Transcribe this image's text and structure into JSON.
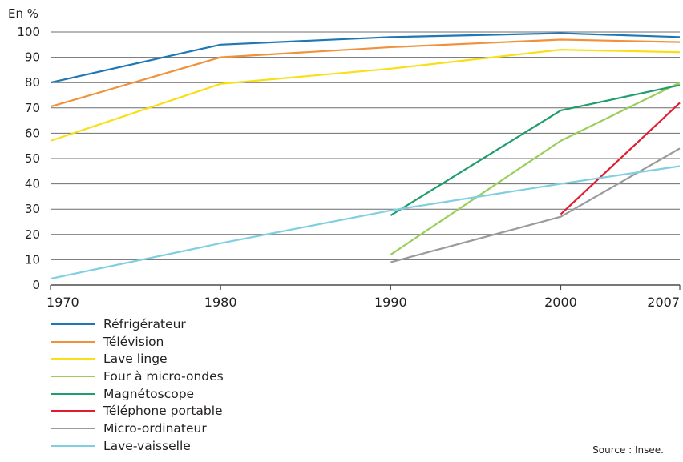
{
  "chart_data": {
    "type": "line",
    "unit_label": "En %",
    "x": [
      1970,
      1980,
      1990,
      2000,
      2007
    ],
    "xlim": [
      1970,
      2007
    ],
    "ylim": [
      0,
      100
    ],
    "yticks": [
      0,
      10,
      20,
      30,
      40,
      50,
      60,
      70,
      80,
      90,
      100
    ],
    "grid": "horizontal",
    "legend_position": "bottom-left",
    "series": [
      {
        "name": "Réfrigérateur",
        "color": "#1f77b4",
        "points": [
          [
            1970,
            80
          ],
          [
            1980,
            95
          ],
          [
            1990,
            98
          ],
          [
            2000,
            99.5
          ],
          [
            2007,
            98
          ]
        ]
      },
      {
        "name": "Télévision",
        "color": "#f0923c",
        "points": [
          [
            1970,
            70.5
          ],
          [
            1980,
            90
          ],
          [
            1990,
            94
          ],
          [
            2000,
            97
          ],
          [
            2007,
            96
          ]
        ]
      },
      {
        "name": "Lave linge",
        "color": "#f7e017",
        "points": [
          [
            1970,
            57
          ],
          [
            1980,
            79.5
          ],
          [
            1990,
            85.5
          ],
          [
            2000,
            93
          ],
          [
            2007,
            92
          ]
        ]
      },
      {
        "name": "Four à micro-ondes",
        "color": "#9acd5a",
        "points": [
          [
            1990,
            12
          ],
          [
            2000,
            57
          ],
          [
            2007,
            80
          ]
        ]
      },
      {
        "name": "Magnétoscope",
        "color": "#1f9e6b",
        "points": [
          [
            1990,
            27.5
          ],
          [
            2000,
            69
          ],
          [
            2007,
            79
          ]
        ]
      },
      {
        "name": "Téléphone portable",
        "color": "#e21d32",
        "points": [
          [
            2000,
            28
          ],
          [
            2007,
            72
          ]
        ]
      },
      {
        "name": "Micro-ordinateur",
        "color": "#9b9b9b",
        "points": [
          [
            1990,
            9
          ],
          [
            2000,
            27
          ],
          [
            2007,
            54
          ]
        ]
      },
      {
        "name": "Lave-vaisselle",
        "color": "#7fcfe3",
        "points": [
          [
            1970,
            2.5
          ],
          [
            1980,
            16.5
          ],
          [
            1990,
            29.5
          ],
          [
            2000,
            40
          ],
          [
            2007,
            47
          ]
        ]
      }
    ]
  },
  "source": "Source : Insee."
}
